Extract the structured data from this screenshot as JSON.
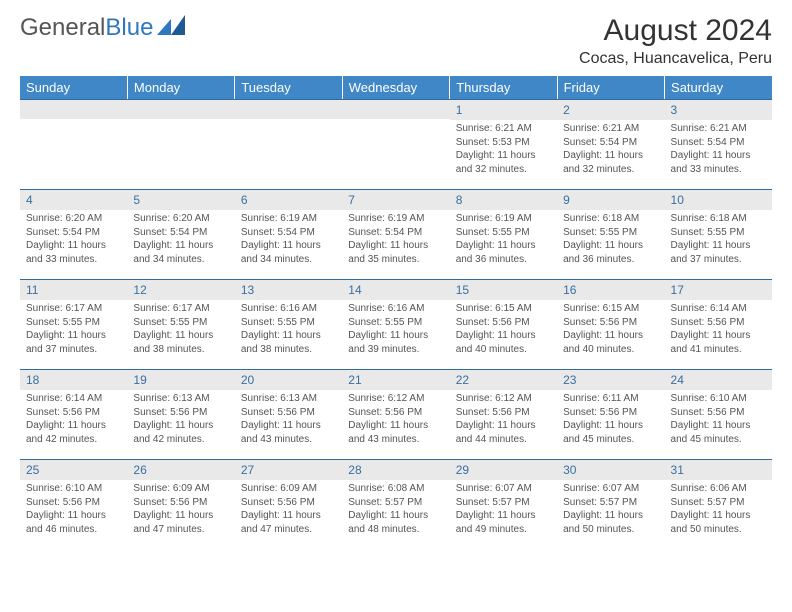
{
  "logo": {
    "text_gray": "General",
    "text_blue": "Blue"
  },
  "title": "August 2024",
  "location": "Cocas, Huancavelica, Peru",
  "colors": {
    "header_bg": "#3f87c7",
    "header_text": "#ffffff",
    "daynum_bg": "#e9e9e9",
    "daynum_text": "#3a6fa0",
    "border": "#2f6aa0",
    "body_text": "#555555"
  },
  "weekdays": [
    "Sunday",
    "Monday",
    "Tuesday",
    "Wednesday",
    "Thursday",
    "Friday",
    "Saturday"
  ],
  "weeks": [
    [
      null,
      null,
      null,
      null,
      {
        "n": "1",
        "sr": "6:21 AM",
        "ss": "5:53 PM",
        "dl": "11 hours and 32 minutes."
      },
      {
        "n": "2",
        "sr": "6:21 AM",
        "ss": "5:54 PM",
        "dl": "11 hours and 32 minutes."
      },
      {
        "n": "3",
        "sr": "6:21 AM",
        "ss": "5:54 PM",
        "dl": "11 hours and 33 minutes."
      }
    ],
    [
      {
        "n": "4",
        "sr": "6:20 AM",
        "ss": "5:54 PM",
        "dl": "11 hours and 33 minutes."
      },
      {
        "n": "5",
        "sr": "6:20 AM",
        "ss": "5:54 PM",
        "dl": "11 hours and 34 minutes."
      },
      {
        "n": "6",
        "sr": "6:19 AM",
        "ss": "5:54 PM",
        "dl": "11 hours and 34 minutes."
      },
      {
        "n": "7",
        "sr": "6:19 AM",
        "ss": "5:54 PM",
        "dl": "11 hours and 35 minutes."
      },
      {
        "n": "8",
        "sr": "6:19 AM",
        "ss": "5:55 PM",
        "dl": "11 hours and 36 minutes."
      },
      {
        "n": "9",
        "sr": "6:18 AM",
        "ss": "5:55 PM",
        "dl": "11 hours and 36 minutes."
      },
      {
        "n": "10",
        "sr": "6:18 AM",
        "ss": "5:55 PM",
        "dl": "11 hours and 37 minutes."
      }
    ],
    [
      {
        "n": "11",
        "sr": "6:17 AM",
        "ss": "5:55 PM",
        "dl": "11 hours and 37 minutes."
      },
      {
        "n": "12",
        "sr": "6:17 AM",
        "ss": "5:55 PM",
        "dl": "11 hours and 38 minutes."
      },
      {
        "n": "13",
        "sr": "6:16 AM",
        "ss": "5:55 PM",
        "dl": "11 hours and 38 minutes."
      },
      {
        "n": "14",
        "sr": "6:16 AM",
        "ss": "5:55 PM",
        "dl": "11 hours and 39 minutes."
      },
      {
        "n": "15",
        "sr": "6:15 AM",
        "ss": "5:56 PM",
        "dl": "11 hours and 40 minutes."
      },
      {
        "n": "16",
        "sr": "6:15 AM",
        "ss": "5:56 PM",
        "dl": "11 hours and 40 minutes."
      },
      {
        "n": "17",
        "sr": "6:14 AM",
        "ss": "5:56 PM",
        "dl": "11 hours and 41 minutes."
      }
    ],
    [
      {
        "n": "18",
        "sr": "6:14 AM",
        "ss": "5:56 PM",
        "dl": "11 hours and 42 minutes."
      },
      {
        "n": "19",
        "sr": "6:13 AM",
        "ss": "5:56 PM",
        "dl": "11 hours and 42 minutes."
      },
      {
        "n": "20",
        "sr": "6:13 AM",
        "ss": "5:56 PM",
        "dl": "11 hours and 43 minutes."
      },
      {
        "n": "21",
        "sr": "6:12 AM",
        "ss": "5:56 PM",
        "dl": "11 hours and 43 minutes."
      },
      {
        "n": "22",
        "sr": "6:12 AM",
        "ss": "5:56 PM",
        "dl": "11 hours and 44 minutes."
      },
      {
        "n": "23",
        "sr": "6:11 AM",
        "ss": "5:56 PM",
        "dl": "11 hours and 45 minutes."
      },
      {
        "n": "24",
        "sr": "6:10 AM",
        "ss": "5:56 PM",
        "dl": "11 hours and 45 minutes."
      }
    ],
    [
      {
        "n": "25",
        "sr": "6:10 AM",
        "ss": "5:56 PM",
        "dl": "11 hours and 46 minutes."
      },
      {
        "n": "26",
        "sr": "6:09 AM",
        "ss": "5:56 PM",
        "dl": "11 hours and 47 minutes."
      },
      {
        "n": "27",
        "sr": "6:09 AM",
        "ss": "5:56 PM",
        "dl": "11 hours and 47 minutes."
      },
      {
        "n": "28",
        "sr": "6:08 AM",
        "ss": "5:57 PM",
        "dl": "11 hours and 48 minutes."
      },
      {
        "n": "29",
        "sr": "6:07 AM",
        "ss": "5:57 PM",
        "dl": "11 hours and 49 minutes."
      },
      {
        "n": "30",
        "sr": "6:07 AM",
        "ss": "5:57 PM",
        "dl": "11 hours and 50 minutes."
      },
      {
        "n": "31",
        "sr": "6:06 AM",
        "ss": "5:57 PM",
        "dl": "11 hours and 50 minutes."
      }
    ]
  ],
  "labels": {
    "sunrise": "Sunrise:",
    "sunset": "Sunset:",
    "daylight": "Daylight:"
  }
}
